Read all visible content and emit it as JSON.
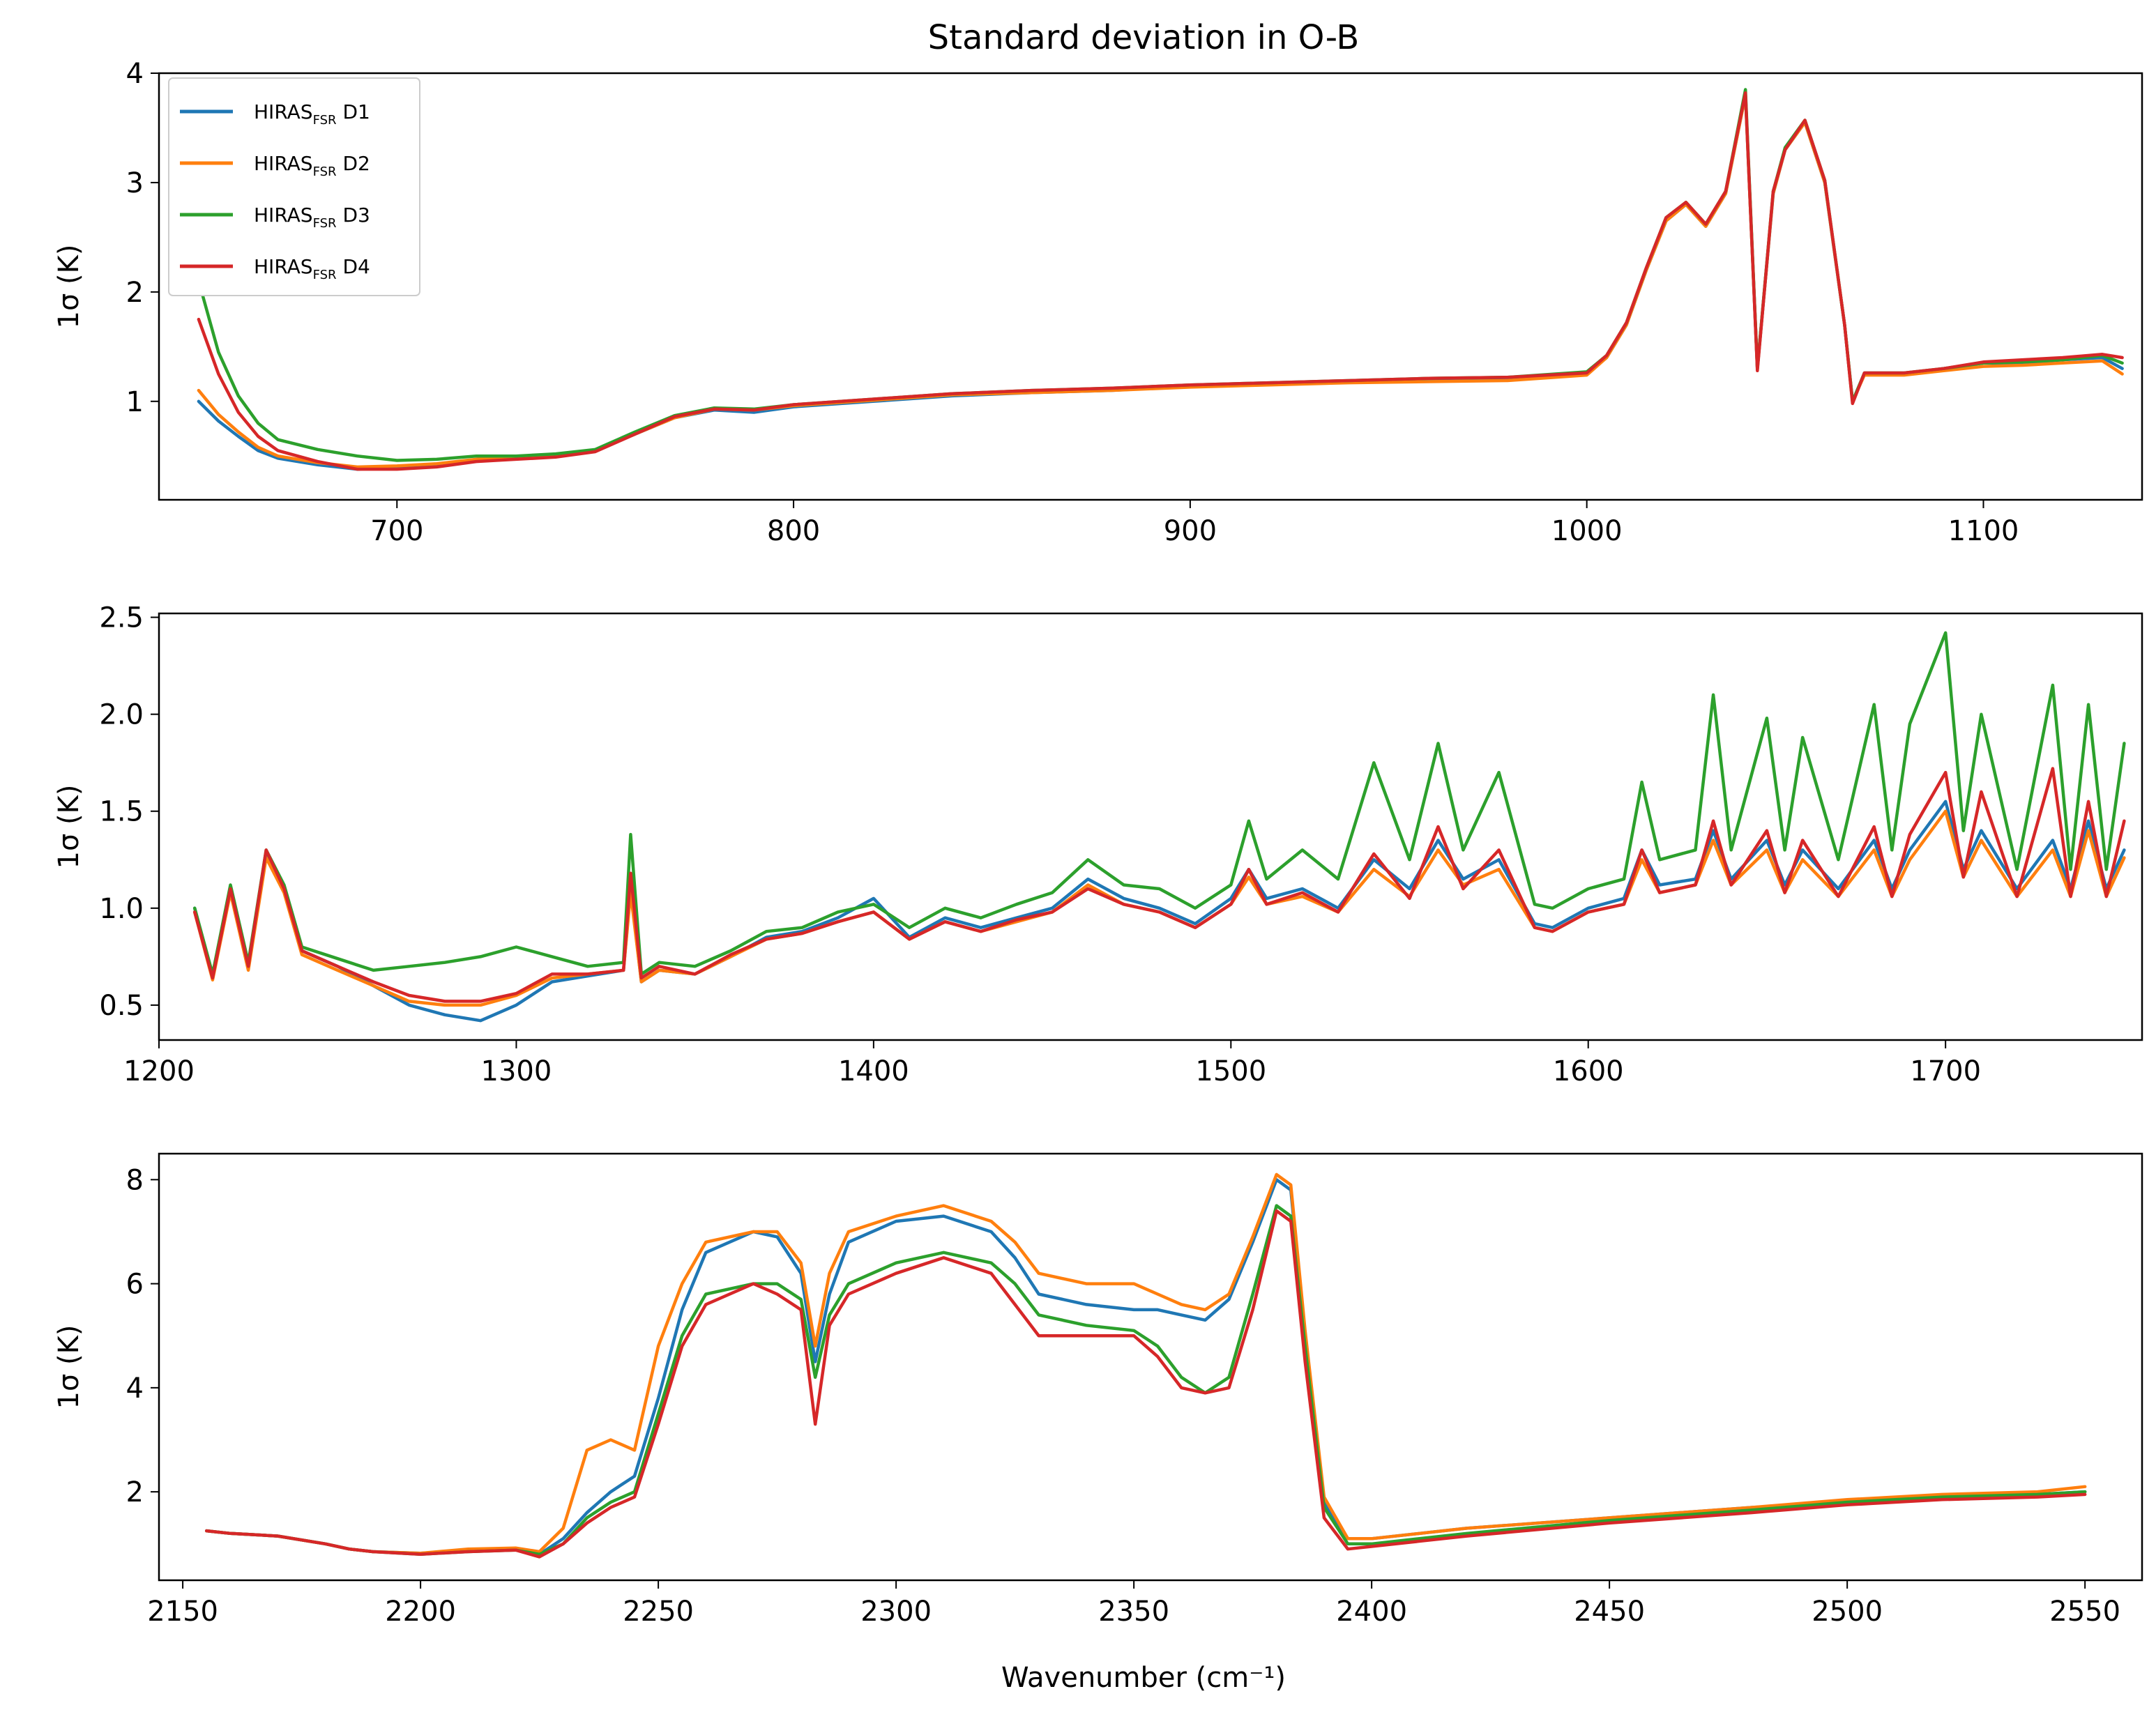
{
  "figure": {
    "title": "Standard deviation in O-B",
    "xlabel": "Wavenumber (cm⁻¹)"
  },
  "legend": {
    "location": "upper-left of top panel",
    "entries": [
      {
        "prefix": "HIRAS",
        "subscript": "FSR",
        "suffix": " D1",
        "color": "#1f77b4"
      },
      {
        "prefix": "HIRAS",
        "subscript": "FSR",
        "suffix": " D2",
        "color": "#ff7f0e"
      },
      {
        "prefix": "HIRAS",
        "subscript": "FSR",
        "suffix": " D3",
        "color": "#2ca02c"
      },
      {
        "prefix": "HIRAS",
        "subscript": "FSR",
        "suffix": " D4",
        "color": "#d62728"
      }
    ]
  },
  "chart_data": [
    {
      "type": "line",
      "title": "Standard deviation in O-B",
      "xlabel": "",
      "ylabel": "1σ (K)",
      "xlim": [
        640,
        1140
      ],
      "ylim": [
        0.1,
        4.0
      ],
      "xticks": [
        700,
        800,
        900,
        1000,
        1100
      ],
      "yticks": [
        1,
        2,
        3,
        4
      ],
      "grid": false,
      "x": [
        650,
        655,
        660,
        665,
        670,
        680,
        690,
        700,
        710,
        720,
        730,
        740,
        750,
        760,
        770,
        780,
        790,
        800,
        820,
        840,
        860,
        880,
        900,
        920,
        940,
        960,
        980,
        1000,
        1005,
        1010,
        1015,
        1020,
        1025,
        1030,
        1035,
        1040,
        1043,
        1047,
        1050,
        1055,
        1060,
        1065,
        1067,
        1070,
        1080,
        1090,
        1100,
        1110,
        1120,
        1130,
        1135
      ],
      "series": [
        {
          "name": "HIRAS_FSR D1",
          "color": "#1f77b4",
          "values": [
            1.0,
            0.82,
            0.68,
            0.55,
            0.48,
            0.42,
            0.38,
            0.4,
            0.42,
            0.46,
            0.48,
            0.5,
            0.55,
            0.7,
            0.85,
            0.92,
            0.9,
            0.95,
            1.0,
            1.05,
            1.08,
            1.1,
            1.14,
            1.16,
            1.18,
            1.2,
            1.2,
            1.25,
            1.4,
            1.7,
            2.2,
            2.65,
            2.8,
            2.6,
            2.9,
            3.8,
            1.3,
            2.9,
            3.3,
            3.55,
            3.0,
            1.7,
            1.0,
            1.25,
            1.25,
            1.3,
            1.35,
            1.35,
            1.38,
            1.4,
            1.3
          ]
        },
        {
          "name": "HIRAS_FSR D2",
          "color": "#ff7f0e",
          "values": [
            1.1,
            0.88,
            0.72,
            0.58,
            0.5,
            0.44,
            0.4,
            0.41,
            0.43,
            0.47,
            0.49,
            0.5,
            0.55,
            0.7,
            0.85,
            0.93,
            0.92,
            0.96,
            1.01,
            1.06,
            1.08,
            1.1,
            1.13,
            1.15,
            1.17,
            1.18,
            1.19,
            1.24,
            1.4,
            1.7,
            2.2,
            2.65,
            2.8,
            2.6,
            2.9,
            3.8,
            1.3,
            2.9,
            3.3,
            3.55,
            3.0,
            1.7,
            1.0,
            1.24,
            1.24,
            1.28,
            1.32,
            1.33,
            1.35,
            1.37,
            1.25
          ]
        },
        {
          "name": "HIRAS_FSR D3",
          "color": "#2ca02c",
          "values": [
            2.1,
            1.45,
            1.05,
            0.8,
            0.65,
            0.56,
            0.5,
            0.46,
            0.47,
            0.5,
            0.5,
            0.52,
            0.56,
            0.72,
            0.87,
            0.94,
            0.93,
            0.97,
            1.02,
            1.07,
            1.1,
            1.12,
            1.15,
            1.17,
            1.19,
            1.21,
            1.22,
            1.27,
            1.42,
            1.72,
            2.22,
            2.68,
            2.82,
            2.62,
            2.92,
            3.85,
            1.3,
            2.92,
            3.32,
            3.57,
            3.02,
            1.7,
            1.0,
            1.26,
            1.26,
            1.3,
            1.35,
            1.36,
            1.38,
            1.42,
            1.35
          ]
        },
        {
          "name": "HIRAS_FSR D4",
          "color": "#d62728",
          "values": [
            1.75,
            1.25,
            0.9,
            0.68,
            0.55,
            0.45,
            0.38,
            0.38,
            0.4,
            0.45,
            0.47,
            0.49,
            0.54,
            0.7,
            0.86,
            0.93,
            0.92,
            0.97,
            1.02,
            1.07,
            1.1,
            1.12,
            1.15,
            1.17,
            1.19,
            1.21,
            1.22,
            1.26,
            1.42,
            1.72,
            2.22,
            2.68,
            2.82,
            2.62,
            2.92,
            3.82,
            1.28,
            2.92,
            3.3,
            3.57,
            3.02,
            1.7,
            0.98,
            1.26,
            1.26,
            1.3,
            1.36,
            1.38,
            1.4,
            1.43,
            1.4
          ]
        }
      ]
    },
    {
      "type": "line",
      "title": "",
      "xlabel": "",
      "ylabel": "1σ (K)",
      "xlim": [
        1200,
        1755
      ],
      "ylim": [
        0.32,
        2.52
      ],
      "xticks": [
        1200,
        1300,
        1400,
        1500,
        1600,
        1700
      ],
      "yticks": [
        0.5,
        1.0,
        1.5,
        2.0,
        2.5
      ],
      "grid": false,
      "x": [
        1210,
        1215,
        1220,
        1225,
        1230,
        1235,
        1240,
        1250,
        1260,
        1270,
        1280,
        1290,
        1300,
        1310,
        1320,
        1330,
        1332,
        1335,
        1340,
        1350,
        1360,
        1370,
        1380,
        1390,
        1400,
        1410,
        1420,
        1430,
        1440,
        1450,
        1460,
        1470,
        1480,
        1490,
        1500,
        1505,
        1510,
        1520,
        1530,
        1540,
        1550,
        1558,
        1565,
        1575,
        1585,
        1590,
        1600,
        1610,
        1615,
        1620,
        1630,
        1635,
        1640,
        1650,
        1655,
        1660,
        1670,
        1680,
        1685,
        1690,
        1700,
        1705,
        1710,
        1720,
        1730,
        1735,
        1740,
        1745,
        1750
      ],
      "series": [
        {
          "name": "HIRAS_FSR D1",
          "color": "#1f77b4",
          "values": [
            1.0,
            0.65,
            1.1,
            0.7,
            1.28,
            1.1,
            0.78,
            0.7,
            0.6,
            0.5,
            0.45,
            0.42,
            0.5,
            0.62,
            0.65,
            0.68,
            1.1,
            0.62,
            0.68,
            0.66,
            0.75,
            0.85,
            0.88,
            0.95,
            1.05,
            0.85,
            0.95,
            0.9,
            0.95,
            1.0,
            1.15,
            1.05,
            1.0,
            0.92,
            1.05,
            1.2,
            1.05,
            1.1,
            1.0,
            1.25,
            1.1,
            1.35,
            1.15,
            1.25,
            0.92,
            0.9,
            1.0,
            1.05,
            1.3,
            1.12,
            1.15,
            1.4,
            1.15,
            1.35,
            1.12,
            1.3,
            1.1,
            1.35,
            1.1,
            1.3,
            1.55,
            1.2,
            1.4,
            1.1,
            1.35,
            1.1,
            1.45,
            1.1,
            1.3
          ]
        },
        {
          "name": "HIRAS_FSR D2",
          "color": "#ff7f0e",
          "values": [
            0.98,
            0.63,
            1.08,
            0.68,
            1.26,
            1.08,
            0.76,
            0.68,
            0.6,
            0.52,
            0.5,
            0.5,
            0.55,
            0.64,
            0.66,
            0.68,
            1.08,
            0.62,
            0.68,
            0.66,
            0.75,
            0.84,
            0.87,
            0.93,
            0.98,
            0.84,
            0.93,
            0.88,
            0.93,
            0.98,
            1.12,
            1.02,
            0.98,
            0.9,
            1.02,
            1.16,
            1.02,
            1.06,
            0.98,
            1.2,
            1.06,
            1.3,
            1.12,
            1.2,
            0.9,
            0.88,
            0.98,
            1.02,
            1.25,
            1.08,
            1.12,
            1.35,
            1.12,
            1.3,
            1.08,
            1.25,
            1.06,
            1.3,
            1.06,
            1.25,
            1.5,
            1.16,
            1.35,
            1.06,
            1.3,
            1.06,
            1.4,
            1.06,
            1.26
          ]
        },
        {
          "name": "HIRAS_FSR D3",
          "color": "#2ca02c",
          "values": [
            1.0,
            0.66,
            1.12,
            0.72,
            1.3,
            1.12,
            0.8,
            0.74,
            0.68,
            0.7,
            0.72,
            0.75,
            0.8,
            0.75,
            0.7,
            0.72,
            1.38,
            0.66,
            0.72,
            0.7,
            0.78,
            0.88,
            0.9,
            0.98,
            1.02,
            0.9,
            1.0,
            0.95,
            1.02,
            1.08,
            1.25,
            1.12,
            1.1,
            1.0,
            1.12,
            1.45,
            1.15,
            1.3,
            1.15,
            1.75,
            1.25,
            1.85,
            1.3,
            1.7,
            1.02,
            1.0,
            1.1,
            1.15,
            1.65,
            1.25,
            1.3,
            2.1,
            1.3,
            1.98,
            1.3,
            1.88,
            1.25,
            2.05,
            1.3,
            1.95,
            2.42,
            1.4,
            2.0,
            1.2,
            2.15,
            1.2,
            2.05,
            1.2,
            1.85
          ]
        },
        {
          "name": "HIRAS_FSR D4",
          "color": "#d62728",
          "values": [
            0.98,
            0.64,
            1.1,
            0.7,
            1.3,
            1.1,
            0.78,
            0.7,
            0.62,
            0.55,
            0.52,
            0.52,
            0.56,
            0.66,
            0.66,
            0.68,
            1.18,
            0.64,
            0.7,
            0.66,
            0.76,
            0.84,
            0.87,
            0.93,
            0.98,
            0.84,
            0.93,
            0.88,
            0.94,
            0.98,
            1.1,
            1.02,
            0.98,
            0.9,
            1.02,
            1.2,
            1.02,
            1.08,
            0.98,
            1.28,
            1.05,
            1.42,
            1.1,
            1.3,
            0.9,
            0.88,
            0.98,
            1.02,
            1.3,
            1.08,
            1.12,
            1.45,
            1.12,
            1.4,
            1.08,
            1.35,
            1.06,
            1.42,
            1.06,
            1.38,
            1.7,
            1.16,
            1.6,
            1.06,
            1.72,
            1.06,
            1.55,
            1.06,
            1.45
          ]
        }
      ]
    },
    {
      "type": "line",
      "title": "",
      "xlabel": "Wavenumber (cm⁻¹)",
      "ylabel": "1σ (K)",
      "xlim": [
        2145,
        2562
      ],
      "ylim": [
        0.3,
        8.5
      ],
      "xticks": [
        2150,
        2200,
        2250,
        2300,
        2350,
        2400,
        2450,
        2500,
        2550
      ],
      "yticks": [
        2,
        4,
        6,
        8
      ],
      "grid": false,
      "x": [
        2155,
        2160,
        2170,
        2180,
        2185,
        2190,
        2200,
        2210,
        2220,
        2225,
        2230,
        2235,
        2240,
        2245,
        2250,
        2255,
        2260,
        2270,
        2275,
        2280,
        2283,
        2286,
        2290,
        2300,
        2310,
        2320,
        2325,
        2330,
        2340,
        2350,
        2355,
        2360,
        2365,
        2370,
        2375,
        2380,
        2383,
        2386,
        2390,
        2395,
        2400,
        2420,
        2450,
        2480,
        2500,
        2520,
        2540,
        2550
      ],
      "series": [
        {
          "name": "HIRAS_FSR D1",
          "color": "#1f77b4",
          "values": [
            1.25,
            1.2,
            1.15,
            1.0,
            0.9,
            0.85,
            0.82,
            0.88,
            0.9,
            0.8,
            1.1,
            1.6,
            2.0,
            2.3,
            3.8,
            5.5,
            6.6,
            7.0,
            6.9,
            6.2,
            4.5,
            5.8,
            6.8,
            7.2,
            7.3,
            7.0,
            6.5,
            5.8,
            5.6,
            5.5,
            5.5,
            5.4,
            5.3,
            5.7,
            6.8,
            8.0,
            7.8,
            5.0,
            1.8,
            1.1,
            1.1,
            1.3,
            1.5,
            1.7,
            1.8,
            1.9,
            1.95,
            2.0
          ]
        },
        {
          "name": "HIRAS_FSR D2",
          "color": "#ff7f0e",
          "values": [
            1.25,
            1.2,
            1.15,
            1.0,
            0.9,
            0.85,
            0.82,
            0.9,
            0.92,
            0.85,
            1.3,
            2.8,
            3.0,
            2.8,
            4.8,
            6.0,
            6.8,
            7.0,
            7.0,
            6.4,
            4.8,
            6.2,
            7.0,
            7.3,
            7.5,
            7.2,
            6.8,
            6.2,
            6.0,
            6.0,
            5.8,
            5.6,
            5.5,
            5.8,
            6.9,
            8.1,
            7.9,
            5.1,
            1.9,
            1.1,
            1.1,
            1.3,
            1.5,
            1.7,
            1.85,
            1.95,
            2.0,
            2.1
          ]
        },
        {
          "name": "HIRAS_FSR D3",
          "color": "#2ca02c",
          "values": [
            1.25,
            1.2,
            1.15,
            1.0,
            0.9,
            0.85,
            0.8,
            0.85,
            0.88,
            0.8,
            1.0,
            1.5,
            1.8,
            2.0,
            3.5,
            5.0,
            5.8,
            6.0,
            6.0,
            5.7,
            4.2,
            5.4,
            6.0,
            6.4,
            6.6,
            6.4,
            6.0,
            5.4,
            5.2,
            5.1,
            4.8,
            4.2,
            3.9,
            4.2,
            5.8,
            7.5,
            7.3,
            4.8,
            1.7,
            1.0,
            1.0,
            1.2,
            1.45,
            1.65,
            1.8,
            1.9,
            1.95,
            2.0
          ]
        },
        {
          "name": "HIRAS_FSR D4",
          "color": "#d62728",
          "values": [
            1.25,
            1.2,
            1.15,
            1.0,
            0.9,
            0.85,
            0.8,
            0.85,
            0.88,
            0.75,
            1.0,
            1.4,
            1.7,
            1.9,
            3.3,
            4.8,
            5.6,
            6.0,
            5.8,
            5.5,
            3.3,
            5.2,
            5.8,
            6.2,
            6.5,
            6.2,
            5.6,
            5.0,
            5.0,
            5.0,
            4.6,
            4.0,
            3.9,
            4.0,
            5.5,
            7.4,
            7.2,
            4.5,
            1.5,
            0.9,
            0.95,
            1.15,
            1.4,
            1.6,
            1.75,
            1.85,
            1.9,
            1.95
          ]
        }
      ]
    }
  ]
}
